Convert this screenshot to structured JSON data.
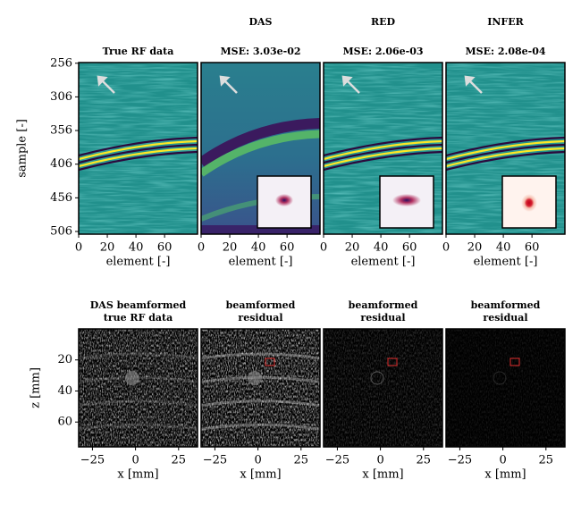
{
  "chart_data": [
    {
      "type": "image",
      "title": [
        "True RF data"
      ],
      "xlabel": "element [-]",
      "ylabel": "sample [-]",
      "xlim": [
        0,
        83
      ],
      "ylim": [
        510,
        255
      ],
      "xticks": [
        0,
        20,
        40,
        60
      ],
      "yticks": [
        256,
        306,
        356,
        406,
        456,
        506
      ]
    },
    {
      "type": "image",
      "column_title": "DAS",
      "title": [
        "MSE: 3.03e-02"
      ],
      "xlabel": "element [-]",
      "xlim": [
        0,
        83
      ],
      "xticks": [
        0,
        20,
        40,
        60
      ]
    },
    {
      "type": "image",
      "column_title": "RED",
      "title": [
        "MSE: 2.06e-03"
      ],
      "xlabel": "element [-]",
      "xlim": [
        0,
        83
      ],
      "xticks": [
        0,
        20,
        40,
        60
      ]
    },
    {
      "type": "image",
      "column_title": "INFER",
      "title": [
        "MSE: 2.08e-04"
      ],
      "xlabel": "element [-]",
      "xlim": [
        0,
        83
      ],
      "xticks": [
        0,
        20,
        40,
        60
      ]
    },
    {
      "type": "image",
      "title": [
        "DAS beamformed",
        "true RF data"
      ],
      "xlabel": "x [mm]",
      "ylabel": "z [mm]",
      "xlim": [
        -33,
        36
      ],
      "ylim": [
        76,
        0
      ],
      "xticks": [
        {
          "value": -25,
          "label": "−25"
        },
        0,
        25
      ],
      "yticks": [
        20,
        40,
        60
      ]
    },
    {
      "type": "image",
      "title": [
        "beamformed",
        "residual"
      ],
      "xlabel": "x [mm]",
      "xlim": [
        -33,
        36
      ],
      "xticks": [
        {
          "value": -25,
          "label": "−25"
        },
        0,
        25
      ]
    },
    {
      "type": "image",
      "title": [
        "beamformed",
        "residual"
      ],
      "xlabel": "x [mm]",
      "xlim": [
        -33,
        36
      ],
      "xticks": [
        {
          "value": -25,
          "label": "−25"
        },
        0,
        25
      ]
    },
    {
      "type": "image",
      "title": [
        "beamformed",
        "residual"
      ],
      "xlabel": "x [mm]",
      "xlim": [
        -33,
        36
      ],
      "xticks": [
        {
          "value": -25,
          "label": "−25"
        },
        0,
        25
      ]
    }
  ]
}
